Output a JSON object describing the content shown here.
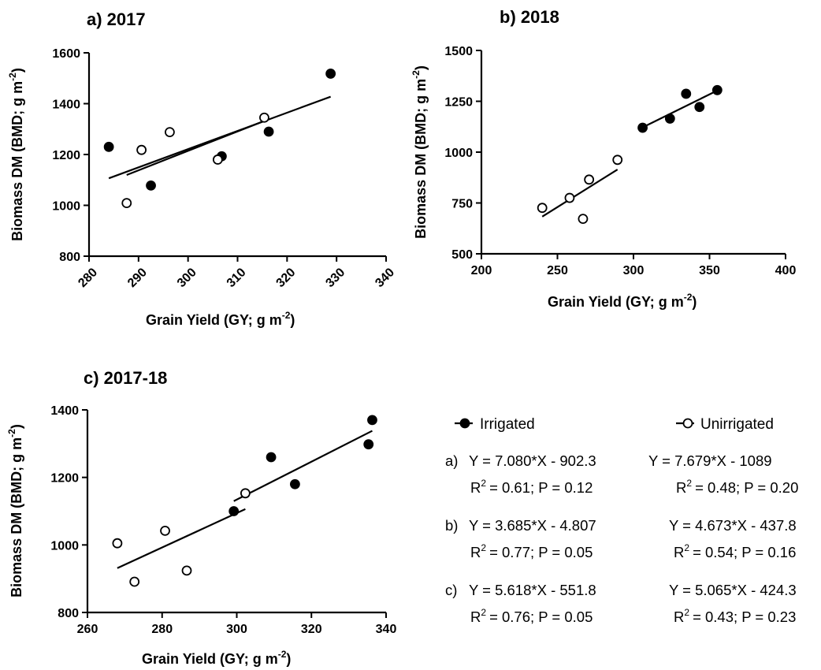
{
  "chart_data": [
    {
      "type": "scatter",
      "panel": "a",
      "title": "a) 2017",
      "xlabel": "Grain Yield (GY; g m",
      "xlabel_sup": "-2",
      "xlabel_end": ")",
      "ylabel": "Biomass DM (BMD; g m",
      "ylabel_sup": "-2",
      "ylabel_end": ")",
      "xlim": [
        280,
        340
      ],
      "ylim": [
        800,
        1600
      ],
      "xticks": [
        280,
        290,
        300,
        310,
        320,
        330,
        340
      ],
      "yticks": [
        800,
        1000,
        1200,
        1400,
        1600
      ],
      "x_tick_rotation": -45,
      "series": [
        {
          "name": "Irrigated",
          "marker": "filled",
          "points": [
            [
              284,
              1230
            ],
            [
              292.5,
              1078
            ],
            [
              306.8,
              1193
            ],
            [
              316.3,
              1290
            ],
            [
              328.8,
              1518
            ]
          ],
          "fit_x": [
            284,
            328.8
          ]
        },
        {
          "name": "Unirrigated",
          "marker": "open",
          "points": [
            [
              287.6,
              1009
            ],
            [
              290.6,
              1218
            ],
            [
              296.3,
              1288
            ],
            [
              306,
              1180
            ],
            [
              315.4,
              1345
            ]
          ],
          "fit_x": [
            287.6,
            315.4
          ]
        }
      ]
    },
    {
      "type": "scatter",
      "panel": "b",
      "title": "b) 2018",
      "xlabel": "Grain Yield (GY; g m",
      "xlabel_sup": "-2",
      "xlabel_end": ")",
      "ylabel": "Biomass DM (BMD; g m",
      "ylabel_sup": "-2",
      "ylabel_end": ")",
      "xlim": [
        200,
        400
      ],
      "ylim": [
        500,
        1500
      ],
      "xticks": [
        200,
        250,
        300,
        350,
        400
      ],
      "yticks": [
        500,
        750,
        1000,
        1250,
        1500
      ],
      "x_tick_rotation": 0,
      "series": [
        {
          "name": "Irrigated",
          "marker": "filled",
          "points": [
            [
              306,
              1120
            ],
            [
              324,
              1165
            ],
            [
              334.6,
              1287
            ],
            [
              343.4,
              1222
            ],
            [
              355.1,
              1305
            ]
          ],
          "fit_x": [
            306,
            355.1
          ]
        },
        {
          "name": "Unirrigated",
          "marker": "open",
          "points": [
            [
              240,
              726
            ],
            [
              258,
              775
            ],
            [
              266.8,
              672
            ],
            [
              270.8,
              865
            ],
            [
              289.5,
              962
            ]
          ],
          "fit_x": [
            240,
            289.5
          ]
        }
      ]
    },
    {
      "type": "scatter",
      "panel": "c",
      "title": "c) 2017-18",
      "xlabel": "Grain Yield (GY; g m",
      "xlabel_sup": "-2",
      "xlabel_end": ")",
      "ylabel": "Biomass DM (BMD; g m",
      "ylabel_sup": "-2",
      "ylabel_end": ")",
      "xlim": [
        260,
        340
      ],
      "ylim": [
        800,
        1400
      ],
      "xticks": [
        260,
        280,
        300,
        320,
        340
      ],
      "yticks": [
        800,
        1000,
        1200,
        1400
      ],
      "x_tick_rotation": 0,
      "series": [
        {
          "name": "Irrigated",
          "marker": "filled",
          "points": [
            [
              299.2,
              1100
            ],
            [
              309.2,
              1260
            ],
            [
              315.6,
              1180
            ],
            [
              335.3,
              1298
            ],
            [
              336.3,
              1370
            ]
          ],
          "fit_x": [
            299.2,
            336.3
          ]
        },
        {
          "name": "Unirrigated",
          "marker": "open",
          "points": [
            [
              268,
              1005
            ],
            [
              272.6,
              891
            ],
            [
              280.8,
              1042
            ],
            [
              286.6,
              924
            ],
            [
              302.3,
              1153
            ]
          ],
          "fit_x": [
            268,
            302.3
          ]
        }
      ]
    }
  ],
  "legend": {
    "irrigated": "Irrigated",
    "unirrigated": "Unirrigated"
  },
  "equations": [
    {
      "prefix": "a)",
      "irrigated_eq": "Y = 7.080*X - 902.3",
      "irrigated_r2": "= 0.61; P = 0.12",
      "unirrigated_eq": "Y = 7.679*X - 1089",
      "unirrigated_r2": "= 0.48; P = 0.20"
    },
    {
      "prefix": "b)",
      "irrigated_eq": "Y = 3.685*X - 4.807",
      "irrigated_r2": "= 0.77; P = 0.05",
      "unirrigated_eq": "Y = 4.673*X - 437.8",
      "unirrigated_r2": "= 0.54; P = 0.16"
    },
    {
      "prefix": "c)",
      "irrigated_eq": "Y = 5.618*X - 551.8",
      "irrigated_r2": "= 0.76; P = 0.05",
      "unirrigated_eq": "Y = 5.065*X - 424.3",
      "unirrigated_r2": "= 0.43; P = 0.23"
    }
  ],
  "r2_label": "R",
  "r2_sup": "2"
}
